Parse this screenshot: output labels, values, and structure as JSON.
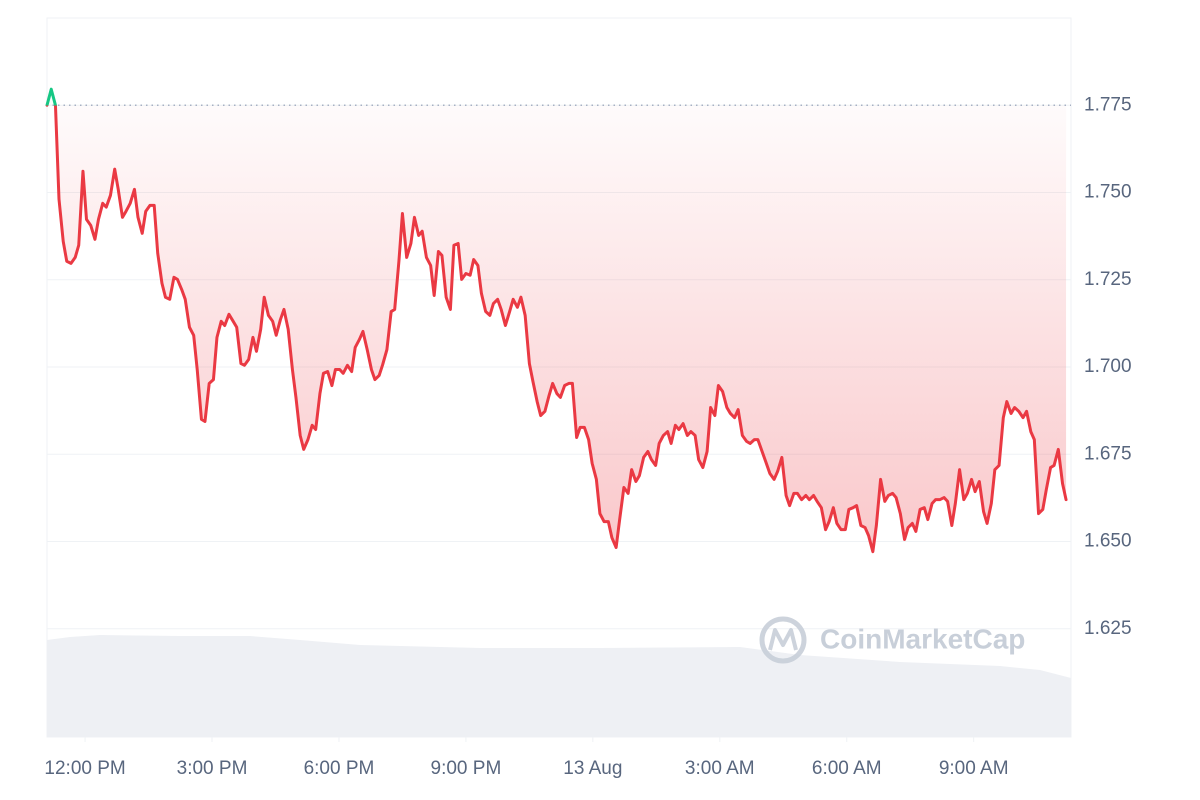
{
  "chart_data": {
    "type": "line",
    "watermark": "CoinMarketCap",
    "reference": 1.775,
    "color": "#ea3943",
    "up_color": "#16c784",
    "grid": true,
    "xlim": [
      -54,
      1398
    ],
    "xticks": [
      {
        "value": 0,
        "label": "12:00 PM"
      },
      {
        "value": 180,
        "label": "3:00 PM"
      },
      {
        "value": 360,
        "label": "6:00 PM"
      },
      {
        "value": 540,
        "label": "9:00 PM"
      },
      {
        "value": 720,
        "label": "13 Aug"
      },
      {
        "value": 900,
        "label": "3:00 AM"
      },
      {
        "value": 1080,
        "label": "6:00 AM"
      },
      {
        "value": 1260,
        "label": "9:00 AM"
      }
    ],
    "ylim": [
      1.594,
      1.8
    ],
    "yticks": [
      1.625,
      {
        "value": 1.65,
        "label": "1.650"
      },
      1.675,
      {
        "value": 1.7,
        "label": "1.700"
      },
      1.725,
      {
        "value": 1.75,
        "label": "1.750"
      },
      1.775
    ],
    "x": [
      -54,
      -48,
      -42,
      -37,
      -31,
      -26,
      -20,
      -14,
      -9,
      -3,
      2,
      8,
      14,
      19,
      25,
      30,
      36,
      42,
      47,
      53,
      58,
      64,
      70,
      75,
      81,
      86,
      92,
      98,
      103,
      109,
      114,
      120,
      126,
      131,
      137,
      142,
      148,
      154,
      159,
      165,
      170,
      176,
      182,
      187,
      193,
      198,
      204,
      210,
      215,
      221,
      226,
      232,
      238,
      243,
      249,
      254,
      260,
      266,
      271,
      277,
      282,
      288,
      294,
      299,
      305,
      310,
      316,
      322,
      327,
      333,
      338,
      344,
      350,
      355,
      361,
      366,
      372,
      378,
      383,
      389,
      394,
      400,
      406,
      411,
      417,
      422,
      428,
      434,
      439,
      445,
      450,
      456,
      462,
      467,
      473,
      478,
      484,
      490,
      495,
      501,
      506,
      512,
      518,
      523,
      529,
      534,
      540,
      546,
      551,
      557,
      562,
      568,
      574,
      579,
      585,
      590,
      596,
      602,
      607,
      613,
      618,
      624,
      630,
      635,
      641,
      646,
      652,
      658,
      663,
      669,
      674,
      680,
      686,
      691,
      697,
      702,
      708,
      714,
      719,
      725,
      730,
      736,
      742,
      747,
      753,
      758,
      764,
      770,
      775,
      781,
      786,
      792,
      798,
      803,
      809,
      814,
      820,
      826,
      831,
      837,
      842,
      848,
      854,
      859,
      865,
      870,
      876,
      882,
      887,
      893,
      898,
      904,
      910,
      915,
      921,
      926,
      932,
      938,
      943,
      949,
      954,
      960,
      966,
      971,
      977,
      982,
      988,
      994,
      999,
      1005,
      1010,
      1016,
      1022,
      1027,
      1033,
      1038,
      1044,
      1050,
      1055,
      1061,
      1066,
      1072,
      1078,
      1083,
      1089,
      1094,
      1100,
      1106,
      1111,
      1117,
      1122,
      1128,
      1134,
      1139,
      1145,
      1150,
      1156,
      1162,
      1167,
      1173,
      1178,
      1184,
      1190,
      1195,
      1201,
      1206,
      1212,
      1218,
      1223,
      1229,
      1234,
      1240,
      1246,
      1251,
      1257,
      1262,
      1268,
      1274,
      1279,
      1285,
      1290,
      1296,
      1302,
      1307,
      1313,
      1318,
      1324,
      1330,
      1335,
      1341,
      1346,
      1352,
      1358,
      1363,
      1369,
      1374,
      1380,
      1386,
      1391
    ],
    "values": [
      1.775,
      1.7796,
      1.775,
      1.7481,
      1.736,
      1.7303,
      1.7297,
      1.7314,
      1.7349,
      1.7561,
      1.7423,
      1.7406,
      1.7366,
      1.7423,
      1.7469,
      1.7458,
      1.7492,
      1.7567,
      1.7509,
      1.7429,
      1.7446,
      1.7469,
      1.7509,
      1.7429,
      1.7383,
      1.7446,
      1.7463,
      1.7463,
      1.7326,
      1.724,
      1.72,
      1.7194,
      1.7257,
      1.7251,
      1.7222,
      1.7194,
      1.7114,
      1.7091,
      1.6993,
      1.685,
      1.6844,
      1.6953,
      1.6964,
      1.7085,
      1.7131,
      1.7119,
      1.7151,
      1.7131,
      1.7114,
      1.701,
      1.7005,
      1.7022,
      1.7085,
      1.7045,
      1.7108,
      1.72,
      1.7148,
      1.7131,
      1.7091,
      1.7136,
      1.7165,
      1.7108,
      1.6993,
      1.6913,
      1.6804,
      1.6764,
      1.6792,
      1.6833,
      1.6821,
      1.6924,
      1.6982,
      1.6987,
      1.6947,
      1.6993,
      1.6993,
      1.6982,
      1.7005,
      1.6987,
      1.7056,
      1.7079,
      1.7102,
      1.705,
      1.6993,
      1.6964,
      1.6976,
      1.7007,
      1.705,
      1.7159,
      1.7165,
      1.7303,
      1.744,
      1.7314,
      1.7354,
      1.7429,
      1.7377,
      1.7389,
      1.7314,
      1.7291,
      1.7205,
      1.7331,
      1.732,
      1.72,
      1.7165,
      1.7349,
      1.7354,
      1.7251,
      1.7268,
      1.7263,
      1.7308,
      1.7291,
      1.7211,
      1.7159,
      1.7148,
      1.7182,
      1.7194,
      1.7165,
      1.7119,
      1.7159,
      1.7194,
      1.7171,
      1.72,
      1.7148,
      1.701,
      1.6959,
      1.6901,
      1.6861,
      1.6873,
      1.6919,
      1.6953,
      1.6924,
      1.6913,
      1.6947,
      1.6953,
      1.6953,
      1.6798,
      1.6827,
      1.6827,
      1.6792,
      1.6724,
      1.6678,
      1.658,
      1.6557,
      1.6557,
      1.6511,
      1.6483,
      1.6563,
      1.6655,
      1.6638,
      1.6706,
      1.6672,
      1.6689,
      1.6741,
      1.6758,
      1.6735,
      1.6718,
      1.6781,
      1.6804,
      1.6815,
      1.6781,
      1.6833,
      1.6821,
      1.6838,
      1.6804,
      1.6815,
      1.6804,
      1.6735,
      1.6712,
      1.6758,
      1.6884,
      1.6861,
      1.6947,
      1.693,
      1.6884,
      1.6867,
      1.6855,
      1.6878,
      1.6804,
      1.6787,
      1.6781,
      1.6792,
      1.6792,
      1.6758,
      1.6724,
      1.6695,
      1.6678,
      1.6701,
      1.6741,
      1.6632,
      1.6603,
      1.6638,
      1.6638,
      1.662,
      1.6632,
      1.662,
      1.6632,
      1.6615,
      1.6597,
      1.6534,
      1.6557,
      1.6597,
      1.6552,
      1.6534,
      1.6534,
      1.6592,
      1.6597,
      1.6603,
      1.6546,
      1.654,
      1.6517,
      1.6471,
      1.6546,
      1.6678,
      1.6615,
      1.6632,
      1.6638,
      1.6626,
      1.658,
      1.6506,
      1.654,
      1.6552,
      1.6529,
      1.6592,
      1.6597,
      1.6563,
      1.6609,
      1.662,
      1.662,
      1.6626,
      1.6615,
      1.6546,
      1.6609,
      1.6706,
      1.662,
      1.6638,
      1.6678,
      1.6643,
      1.6672,
      1.6586,
      1.6552,
      1.6609,
      1.6706,
      1.6718,
      1.6855,
      1.6901,
      1.6867,
      1.6884,
      1.6873,
      1.6855,
      1.6873,
      1.6815,
      1.6792,
      1.658,
      1.6592,
      1.6649,
      1.6712,
      1.6718,
      1.6764,
      1.6666,
      1.662
    ]
  }
}
